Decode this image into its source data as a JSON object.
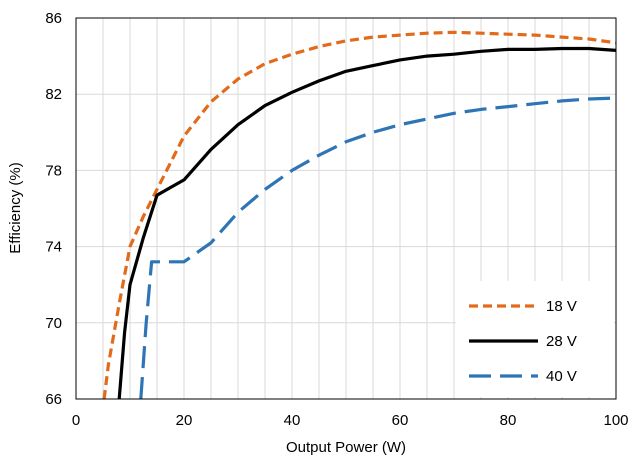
{
  "chart_data": {
    "type": "line",
    "xlabel": "Output Power (W)",
    "ylabel": "Efficiency (%)",
    "xlim": [
      0,
      100
    ],
    "ylim": [
      66,
      86
    ],
    "xticks": [
      0,
      20,
      40,
      60,
      80,
      100
    ],
    "yticks": [
      66,
      70,
      74,
      78,
      82,
      86
    ],
    "grid": "vertical gridlines every 5 W, horizontal every 4 %",
    "legend_position": "bottom-right",
    "series": [
      {
        "name": "18 V",
        "color": "#E26A1B",
        "style": "dashed",
        "x": [
          5.2,
          6,
          8,
          10,
          12.5,
          15,
          17.5,
          20,
          25,
          30,
          35,
          40,
          45,
          50,
          55,
          60,
          65,
          70,
          75,
          80,
          85,
          90,
          95,
          100
        ],
        "y": [
          66,
          67.8,
          71,
          74,
          75.6,
          77,
          78.4,
          79.8,
          81.6,
          82.8,
          83.6,
          84.1,
          84.5,
          84.8,
          85.0,
          85.1,
          85.2,
          85.25,
          85.2,
          85.15,
          85.1,
          85.0,
          84.9,
          84.7
        ]
      },
      {
        "name": "28 V",
        "color": "#000000",
        "style": "solid",
        "x": [
          8,
          9,
          10,
          12.5,
          15,
          17.5,
          20,
          25,
          30,
          35,
          40,
          45,
          50,
          55,
          60,
          65,
          70,
          75,
          80,
          85,
          90,
          95,
          100
        ],
        "y": [
          66,
          69.5,
          72,
          74.5,
          76.7,
          77.1,
          77.5,
          79.1,
          80.4,
          81.4,
          82.1,
          82.7,
          83.2,
          83.5,
          83.8,
          84.0,
          84.1,
          84.25,
          84.35,
          84.35,
          84.4,
          84.4,
          84.3
        ]
      },
      {
        "name": "40 V",
        "color": "#2E75B6",
        "style": "long-dashed",
        "x": [
          12,
          13,
          14,
          15,
          17.5,
          20,
          25,
          30,
          35,
          40,
          45,
          50,
          55,
          60,
          65,
          70,
          75,
          80,
          85,
          90,
          95,
          100
        ],
        "y": [
          66,
          70,
          73.2,
          73.2,
          73.2,
          73.2,
          74.2,
          75.8,
          77.0,
          78.0,
          78.8,
          79.5,
          80.0,
          80.4,
          80.7,
          81.0,
          81.2,
          81.35,
          81.5,
          81.65,
          81.75,
          81.8
        ]
      }
    ]
  }
}
